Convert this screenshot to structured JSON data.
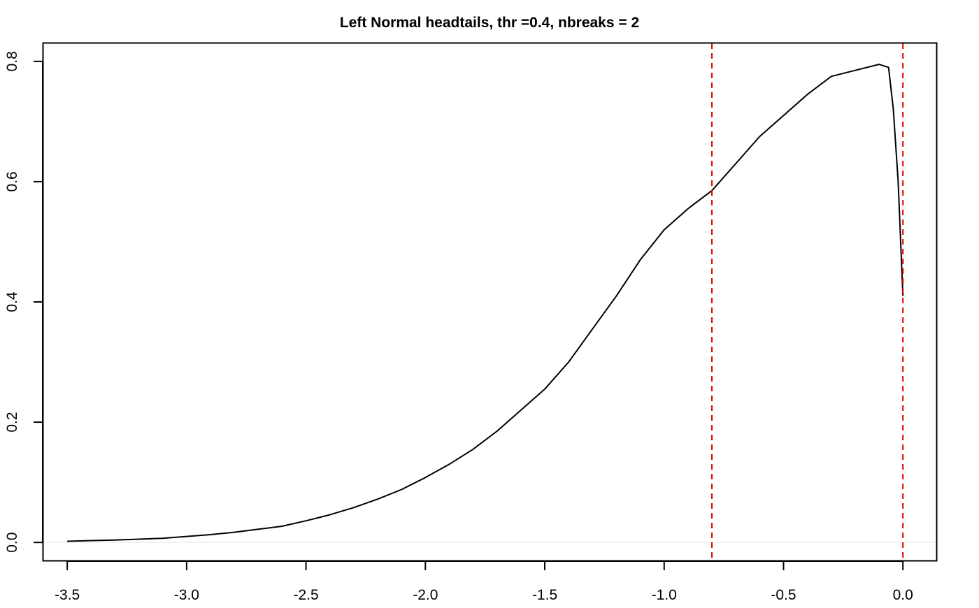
{
  "chart_data": {
    "type": "line",
    "title": "Left Normal headtails, thr =0.4, nbreaks = 2",
    "xlabel": "",
    "ylabel": "",
    "xlim": [
      -3.6,
      0.14
    ],
    "ylim": [
      -0.03,
      0.83
    ],
    "x_ticks": [
      -3.5,
      -3.0,
      -2.5,
      -2.0,
      -1.5,
      -1.0,
      -0.5,
      0.0
    ],
    "x_tick_labels": [
      "-3.5",
      "-3.0",
      "-2.5",
      "-2.0",
      "-1.5",
      "-1.0",
      "-0.5",
      "0.0"
    ],
    "y_ticks": [
      0.0,
      0.2,
      0.4,
      0.6,
      0.8
    ],
    "y_tick_labels": [
      "0.0",
      "0.2",
      "0.4",
      "0.6",
      "0.8"
    ],
    "grid": false,
    "legend": "none",
    "series": [
      {
        "color": "#000000",
        "x": [
          -3.5,
          -3.3,
          -3.1,
          -3.0,
          -2.9,
          -2.8,
          -2.7,
          -2.6,
          -2.5,
          -2.4,
          -2.3,
          -2.2,
          -2.1,
          -2.0,
          -1.9,
          -1.8,
          -1.7,
          -1.6,
          -1.5,
          -1.4,
          -1.3,
          -1.2,
          -1.1,
          -1.0,
          -0.9,
          -0.8,
          -0.7,
          -0.6,
          -0.5,
          -0.4,
          -0.3,
          -0.2,
          -0.1,
          -0.06,
          -0.04,
          -0.02,
          0.0
        ],
        "y": [
          0.002,
          0.004,
          0.007,
          0.01,
          0.013,
          0.017,
          0.022,
          0.027,
          0.036,
          0.046,
          0.058,
          0.072,
          0.088,
          0.108,
          0.13,
          0.155,
          0.185,
          0.22,
          0.255,
          0.3,
          0.355,
          0.41,
          0.47,
          0.52,
          0.555,
          0.585,
          0.63,
          0.675,
          0.71,
          0.745,
          0.775,
          0.785,
          0.795,
          0.79,
          0.72,
          0.6,
          0.41
        ]
      }
    ],
    "vlines": [
      {
        "x": -0.8,
        "color": "#dd0000",
        "style": "dashed"
      },
      {
        "x": 0.0,
        "color": "#dd0000",
        "style": "dashed"
      }
    ],
    "hline": {
      "y": 0.0,
      "color": "#e8e8e8"
    }
  }
}
